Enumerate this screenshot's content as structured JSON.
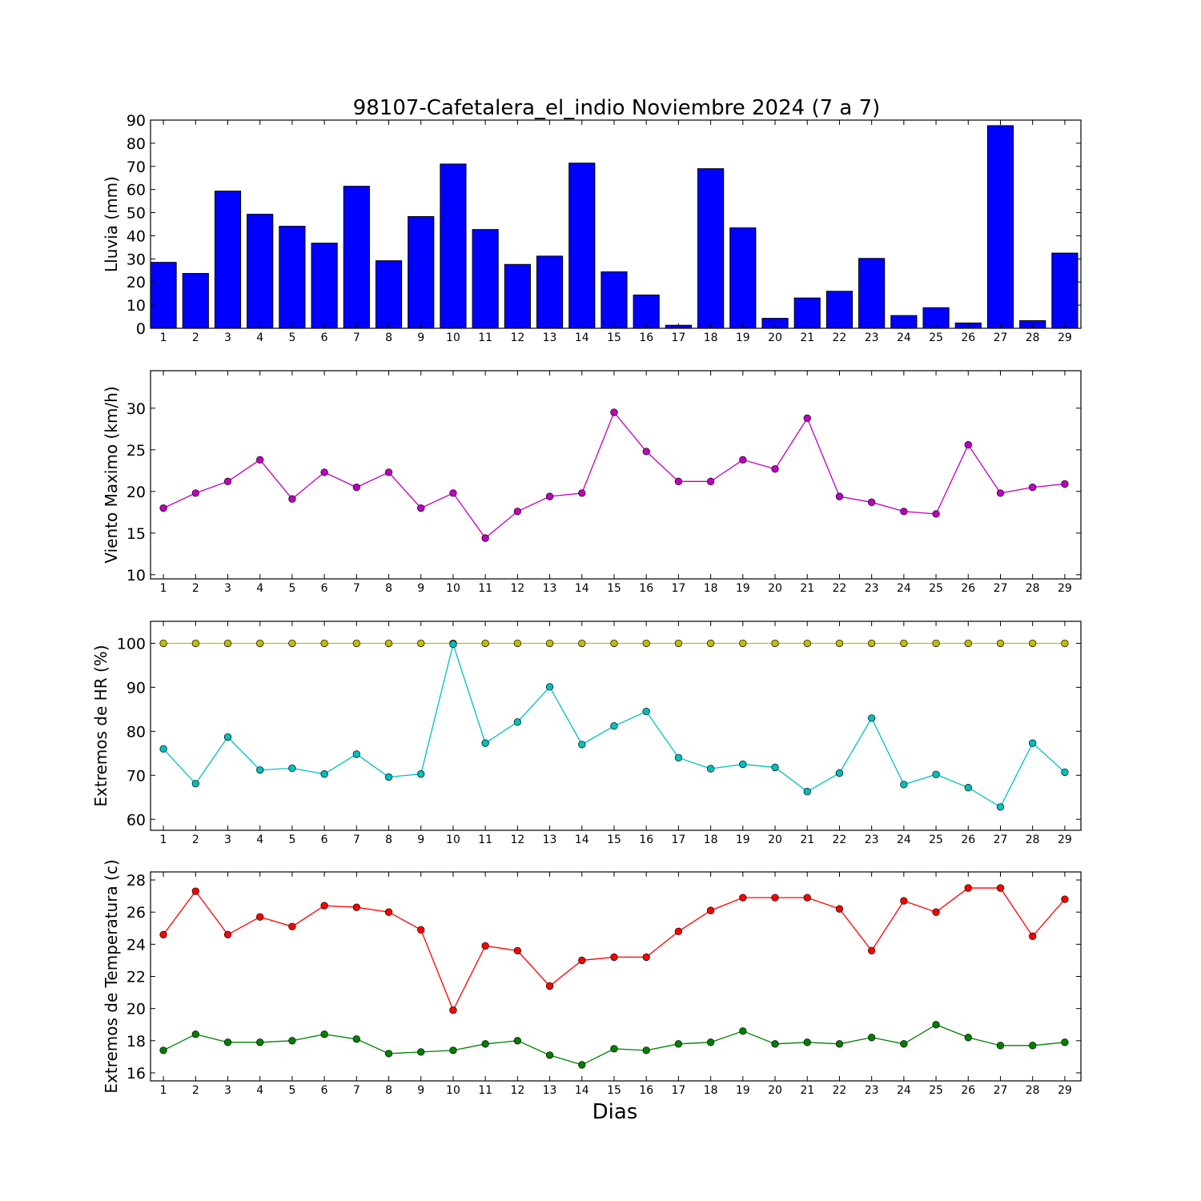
{
  "title": "98107-Cafetalera_el_indio Noviembre 2024  (7 a 7)",
  "xlabel": "Dias",
  "colors": {
    "rain": "#0000ff",
    "wind": "#bf00bf",
    "hr_max": "#bfbf00",
    "hr_min": "#00bfbf",
    "temp_max": "#ff0000",
    "temp_min": "#008000"
  },
  "chart_data": [
    {
      "type": "bar",
      "ylabel": "Lluvia (mm)",
      "ylim": [
        0,
        90
      ],
      "yticks": [
        0,
        10,
        20,
        30,
        40,
        50,
        60,
        70,
        80,
        90
      ],
      "x": [
        1,
        2,
        3,
        4,
        5,
        6,
        7,
        8,
        9,
        10,
        11,
        12,
        13,
        14,
        15,
        16,
        17,
        18,
        19,
        20,
        21,
        22,
        23,
        24,
        25,
        26,
        27,
        28,
        29
      ],
      "series": [
        {
          "color": "#0000ff",
          "values": [
            28.5,
            23.7,
            59.3,
            49.3,
            44.1,
            36.8,
            61.4,
            29.2,
            48.3,
            71.0,
            42.7,
            27.6,
            31.2,
            71.4,
            24.4,
            14.4,
            1.3,
            69.0,
            43.4,
            4.3,
            13.1,
            16.0,
            30.2,
            5.5,
            8.9,
            2.3,
            87.6,
            3.3,
            32.5
          ]
        }
      ]
    },
    {
      "type": "line",
      "ylabel": "Viento Maximo (km/h)",
      "ylim": [
        9.5,
        34.5
      ],
      "yticks": [
        10,
        15,
        20,
        25,
        30
      ],
      "x": [
        1,
        2,
        3,
        4,
        5,
        6,
        7,
        8,
        9,
        10,
        11,
        12,
        13,
        14,
        15,
        16,
        17,
        18,
        19,
        20,
        21,
        22,
        23,
        24,
        25,
        26,
        27,
        28,
        29
      ],
      "series": [
        {
          "color": "#bf00bf",
          "values": [
            18.0,
            19.8,
            21.2,
            23.8,
            19.1,
            22.3,
            20.5,
            22.3,
            18.0,
            19.8,
            14.4,
            17.6,
            19.4,
            19.8,
            29.5,
            24.8,
            21.2,
            21.2,
            23.8,
            22.7,
            28.8,
            19.4,
            18.7,
            17.6,
            17.3,
            25.6,
            19.8,
            20.5,
            20.9
          ]
        }
      ]
    },
    {
      "type": "line",
      "ylabel": "Extremos de HR (%)",
      "ylim": [
        57.5,
        105
      ],
      "yticks": [
        60,
        70,
        80,
        90,
        100
      ],
      "x": [
        1,
        2,
        3,
        4,
        5,
        6,
        7,
        8,
        9,
        10,
        11,
        12,
        13,
        14,
        15,
        16,
        17,
        18,
        19,
        20,
        21,
        22,
        23,
        24,
        25,
        26,
        27,
        28,
        29
      ],
      "series": [
        {
          "color": "#bfbf00",
          "values": [
            100,
            100,
            100,
            100,
            100,
            100,
            100,
            100,
            100,
            100,
            100,
            100,
            100,
            100,
            100,
            100,
            100,
            100,
            100,
            100,
            100,
            100,
            100,
            100,
            100,
            100,
            100,
            100,
            100
          ]
        },
        {
          "color": "#00bfbf",
          "values": [
            76.0,
            68.1,
            78.7,
            71.2,
            71.6,
            70.3,
            74.8,
            69.6,
            70.3,
            99.8,
            77.3,
            82.1,
            90.1,
            77.0,
            81.2,
            84.5,
            74.0,
            71.5,
            72.5,
            71.8,
            66.3,
            70.5,
            83.0,
            67.9,
            70.2,
            67.2,
            62.8,
            77.3,
            70.7
          ]
        }
      ]
    },
    {
      "type": "line",
      "ylabel": "Extremos de Temperatura (c)",
      "ylim": [
        15.5,
        28.5
      ],
      "yticks": [
        16,
        18,
        20,
        22,
        24,
        26,
        28
      ],
      "x": [
        1,
        2,
        3,
        4,
        5,
        6,
        7,
        8,
        9,
        10,
        11,
        12,
        13,
        14,
        15,
        16,
        17,
        18,
        19,
        20,
        21,
        22,
        23,
        24,
        25,
        26,
        27,
        28,
        29
      ],
      "series": [
        {
          "color": "#ff0000",
          "values": [
            24.6,
            27.3,
            24.6,
            25.7,
            25.1,
            26.4,
            26.3,
            26.0,
            24.9,
            19.9,
            23.9,
            23.6,
            21.4,
            23.0,
            23.2,
            23.2,
            24.8,
            26.1,
            26.9,
            26.9,
            26.9,
            26.2,
            23.6,
            26.7,
            26.0,
            27.5,
            27.5,
            24.5,
            26.8
          ]
        },
        {
          "color": "#008000",
          "values": [
            17.4,
            18.4,
            17.9,
            17.9,
            18.0,
            18.4,
            18.1,
            17.2,
            17.3,
            17.4,
            17.8,
            18.0,
            17.1,
            16.5,
            17.5,
            17.4,
            17.8,
            17.9,
            18.6,
            17.8,
            17.9,
            17.8,
            18.2,
            17.8,
            19.0,
            18.2,
            17.7,
            17.7,
            17.9
          ]
        }
      ]
    }
  ]
}
